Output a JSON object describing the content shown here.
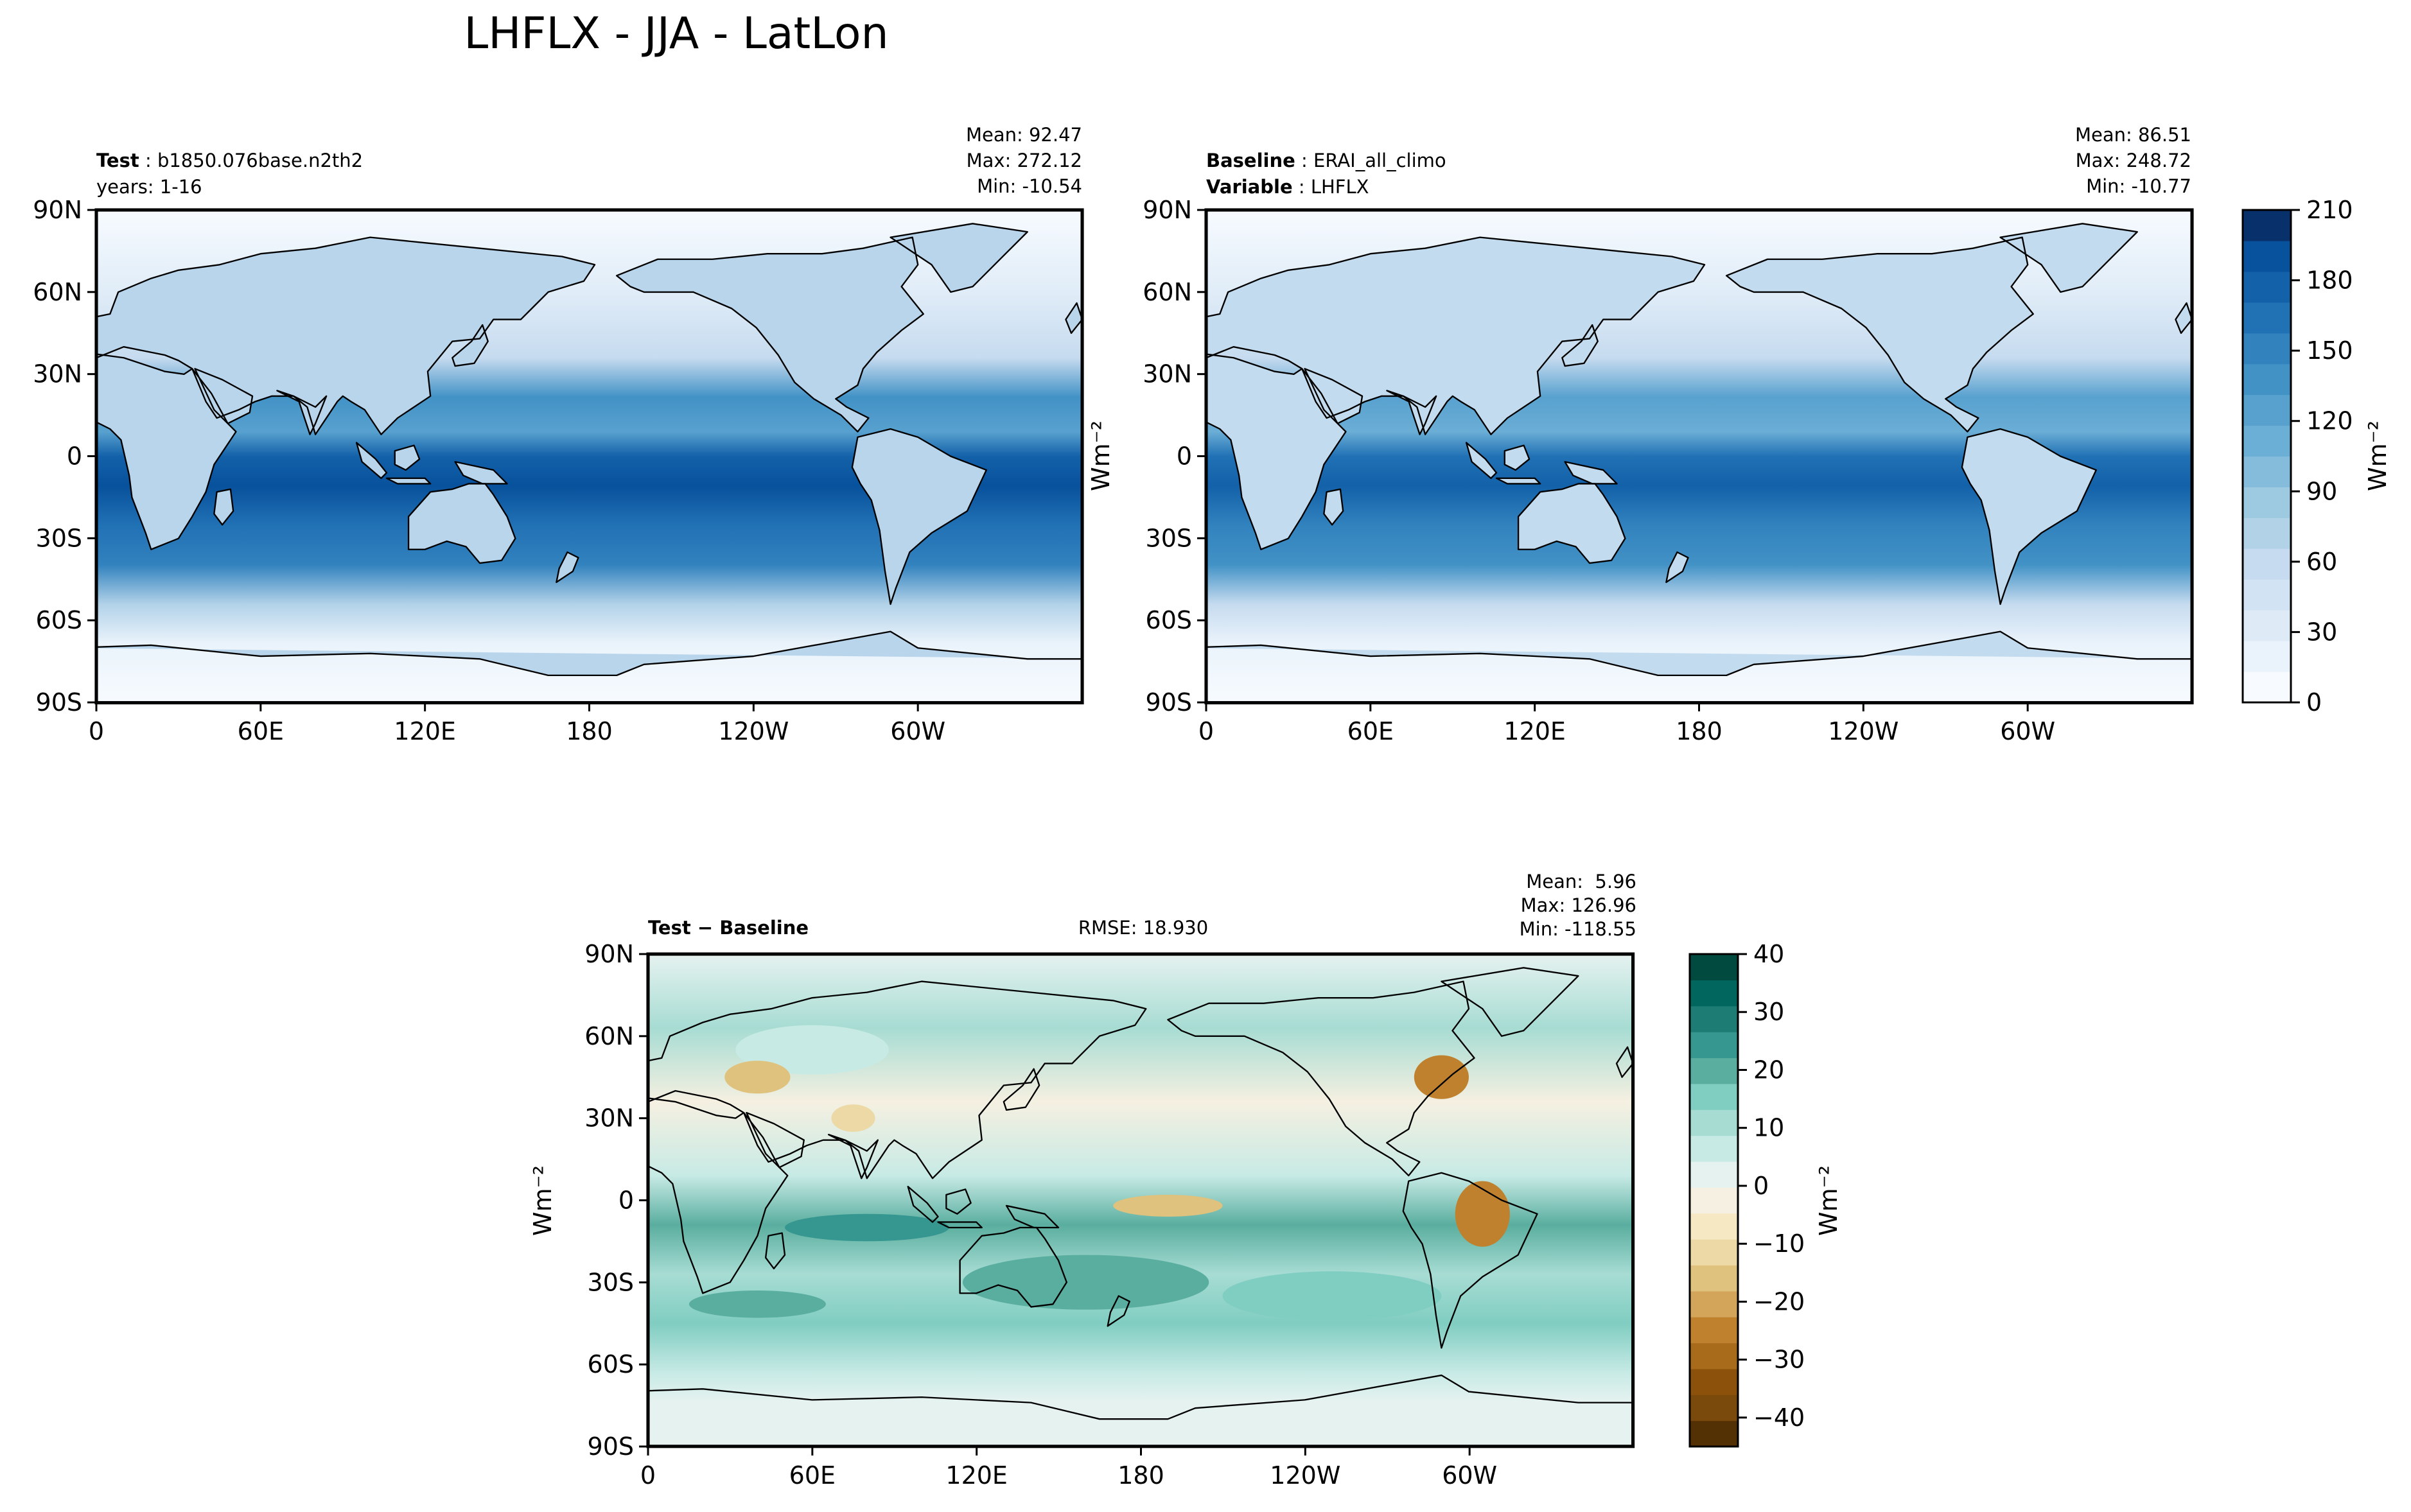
{
  "figure": {
    "title": "LHFLX - JJA - LatLon"
  },
  "colors": {
    "blues": [
      "#f7fbff",
      "#eaf3fb",
      "#deebf7",
      "#d2e3f3",
      "#c6dbef",
      "#b2d2e8",
      "#9ecae1",
      "#85bcdc",
      "#6baed6",
      "#58a1cf",
      "#4292c6",
      "#3282be",
      "#2171b5",
      "#1361a9",
      "#08519c",
      "#08306b"
    ],
    "brbg": [
      "#543005",
      "#7a4a0c",
      "#8c510a",
      "#a86b1c",
      "#bf812d",
      "#d3a55a",
      "#dfc27d",
      "#ecd9a5",
      "#f6e8c3",
      "#f5f0e1",
      "#e6f2f0",
      "#c7eae5",
      "#a7dcd3",
      "#80cdc1",
      "#5aae9f",
      "#35978f",
      "#1d7d74",
      "#01665e",
      "#014a3f"
    ],
    "coast": "#000000",
    "missing": "#ffffff"
  },
  "icons": {
    "panel_maps": "world-map-icon"
  },
  "chart_data": [
    {
      "type": "heatmap",
      "panel": "test",
      "label_bold": "Test",
      "label_text": "b1850.076base.n2th2",
      "label_line2": "years: 1-16",
      "stats": [
        "Mean: 92.47",
        "Max: 272.12",
        "Min: -10.54"
      ],
      "x_ticks": [
        "0",
        "60E",
        "120E",
        "180",
        "120W",
        "60W"
      ],
      "x_tick_values": [
        0,
        60,
        120,
        180,
        240,
        300
      ],
      "y_ticks": [
        "90N",
        "60N",
        "30N",
        "0",
        "30S",
        "60S",
        "90S"
      ],
      "y_tick_values": [
        90,
        60,
        30,
        0,
        -30,
        -60,
        -90
      ],
      "xlim": [
        0,
        360
      ],
      "ylim": [
        -90,
        90
      ],
      "colormap": "blues",
      "vmin": 0,
      "vmax": 210
    },
    {
      "type": "heatmap",
      "panel": "baseline",
      "label_bold": "Baseline",
      "label_text": "ERAI_all_climo",
      "label_bold2": "Variable",
      "label_text2": "LHFLX",
      "stats": [
        "Mean: 86.51",
        "Max: 248.72",
        "Min: -10.77"
      ],
      "x_ticks": [
        "0",
        "60E",
        "120E",
        "180",
        "120W",
        "60W"
      ],
      "x_tick_values": [
        0,
        60,
        120,
        180,
        240,
        300
      ],
      "y_ticks": [
        "90N",
        "60N",
        "30N",
        "0",
        "30S",
        "60S",
        "90S"
      ],
      "y_tick_values": [
        90,
        60,
        30,
        0,
        -30,
        -60,
        -90
      ],
      "xlim": [
        0,
        360
      ],
      "ylim": [
        -90,
        90
      ],
      "colormap": "blues",
      "vmin": 0,
      "vmax": 210,
      "colorbar": {
        "label": "Wm⁻²",
        "ticks": [
          0,
          30,
          60,
          90,
          120,
          150,
          180,
          210
        ]
      }
    },
    {
      "type": "heatmap",
      "panel": "diff",
      "label_bold": "Test − Baseline",
      "rmse": "RMSE: 18.930",
      "stats": [
        "Mean:  5.96",
        "Max: 126.96",
        "Min: -118.55"
      ],
      "x_ticks": [
        "0",
        "60E",
        "120E",
        "180",
        "120W",
        "60W"
      ],
      "x_tick_values": [
        0,
        60,
        120,
        180,
        240,
        300
      ],
      "y_ticks": [
        "90N",
        "60N",
        "30N",
        "0",
        "30S",
        "60S",
        "90S"
      ],
      "y_tick_values": [
        90,
        60,
        30,
        0,
        -30,
        -60,
        -90
      ],
      "xlim": [
        0,
        360
      ],
      "ylim": [
        -90,
        90
      ],
      "ylabel": "Wm⁻²",
      "colormap": "brbg",
      "vmin": -45,
      "vmax": 40,
      "colorbar": {
        "label": "Wm⁻²",
        "ticks": [
          -40,
          -30,
          -20,
          -10,
          0,
          10,
          20,
          30,
          40
        ]
      }
    }
  ]
}
